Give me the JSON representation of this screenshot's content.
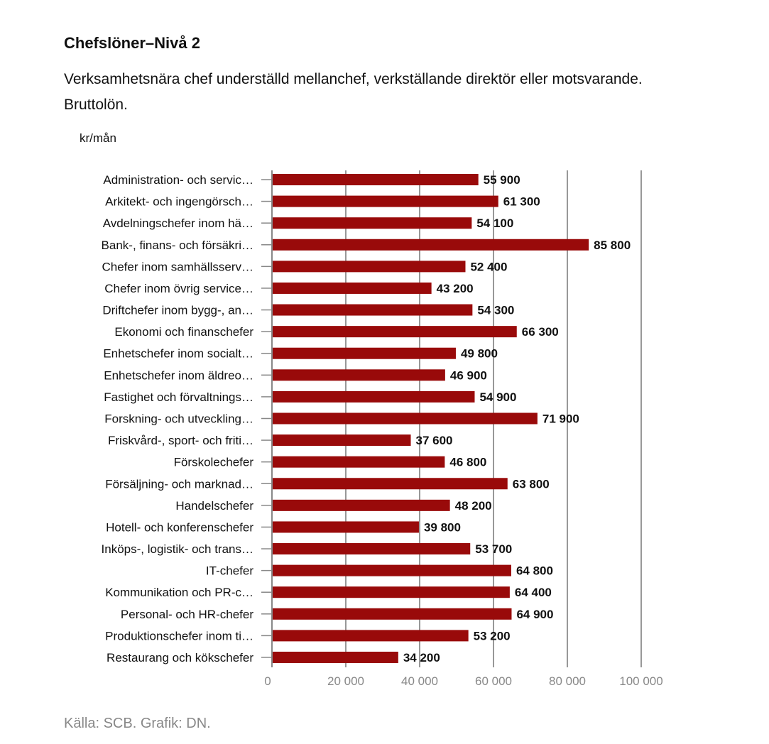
{
  "chart_data": {
    "type": "bar",
    "orientation": "horizontal",
    "title": "Chefslöner–Nivå 2",
    "subtitle": "Verksamhetsnära chef underställd mellanchef, verkställande direktör eller motsvarande. Bruttolön.",
    "ylabel": "kr/mån",
    "xlabel": "",
    "xlim": [
      0,
      100000
    ],
    "x_ticks": [
      0,
      20000,
      40000,
      60000,
      80000,
      100000
    ],
    "x_tick_labels": [
      "0",
      "20 000",
      "40 000",
      "60 000",
      "80 000",
      "100 000"
    ],
    "grid": true,
    "bar_color": "#990a0a",
    "categories": [
      "Administration- och servic…",
      "Arkitekt- och ingengörsch…",
      "Avdelningschefer inom hä…",
      "Bank-, finans- och försäkri…",
      "Chefer inom samhällsserv…",
      "Chefer inom övrig service…",
      "Driftchefer inom bygg-, an…",
      "Ekonomi och finanschefer",
      "Enhetschefer inom socialt…",
      "Enhetschefer inom äldreo…",
      "Fastighet och förvaltnings…",
      "Forskning- och utveckling…",
      "Friskvård-, sport- och friti…",
      "Förskolechefer",
      "Försäljning- och marknad…",
      "Handelschefer",
      "Hotell- och konferenschefer",
      "Inköps-, logistik- och trans…",
      "IT-chefer",
      "Kommunikation och PR-c…",
      "Personal- och HR-chefer",
      "Produktionschefer inom ti…",
      "Restaurang och kökschefer"
    ],
    "values": [
      55900,
      61300,
      54100,
      85800,
      52400,
      43200,
      54300,
      66300,
      49800,
      46900,
      54900,
      71900,
      37600,
      46800,
      63800,
      48200,
      39800,
      53700,
      64800,
      64400,
      64900,
      53200,
      34200
    ],
    "value_labels": [
      "55 900",
      "61 300",
      "54 100",
      "85 800",
      "52 400",
      "43 200",
      "54 300",
      "66 300",
      "49 800",
      "46 900",
      "54 900",
      "71 900",
      "37 600",
      "46 800",
      "63 800",
      "48 200",
      "39 800",
      "53 700",
      "64 800",
      "64 400",
      "64 900",
      "53 200",
      "34 200"
    ],
    "source": "Källa: SCB. Grafik: DN."
  }
}
